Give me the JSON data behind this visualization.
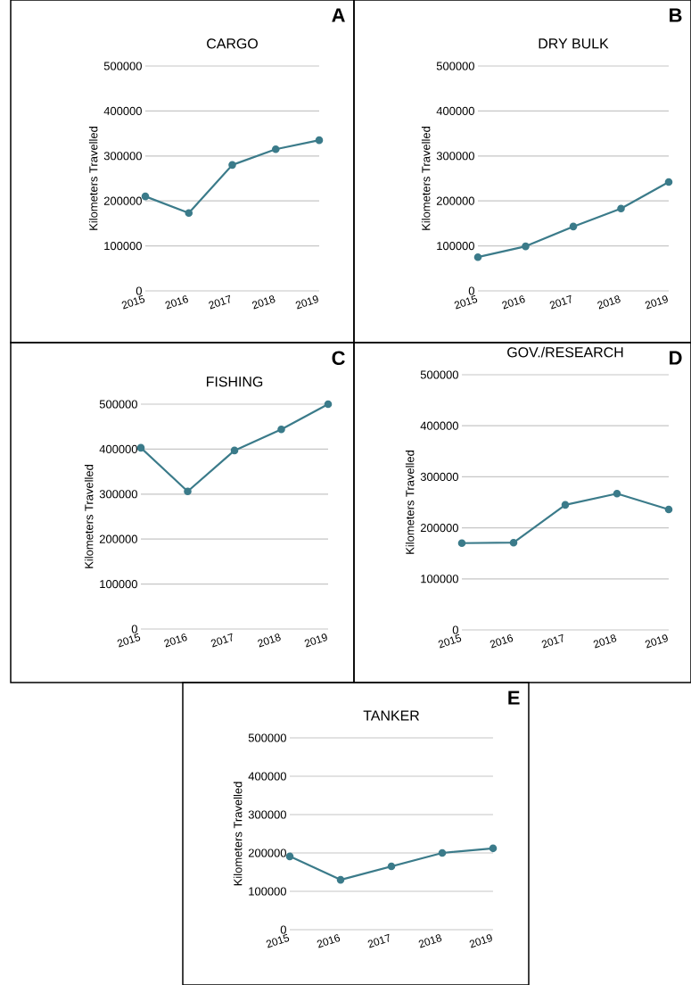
{
  "chart_data": [
    {
      "type": "line",
      "title": "CARGO",
      "ylabel": "Kilometers Travelled",
      "categories": [
        "2015",
        "2016",
        "2017",
        "2018",
        "2019"
      ],
      "series": [
        {
          "color": "#3b7b8a",
          "values": [
            210000,
            173000,
            280000,
            315000,
            335000
          ]
        }
      ],
      "ylim": [
        0,
        500000
      ],
      "yticks": [
        0,
        100000,
        200000,
        300000,
        400000,
        500000
      ],
      "grid": "y",
      "marker": "circle",
      "annotations": [
        "A"
      ]
    },
    {
      "type": "line",
      "title": "DRY BULK",
      "ylabel": "Kilometers Travelled",
      "categories": [
        "2015",
        "2016",
        "2017",
        "2018",
        "2019"
      ],
      "series": [
        {
          "color": "#3b7b8a",
          "values": [
            75000,
            99000,
            143000,
            183000,
            242000
          ]
        }
      ],
      "ylim": [
        0,
        500000
      ],
      "yticks": [
        0,
        100000,
        200000,
        300000,
        400000,
        500000
      ],
      "grid": "y",
      "marker": "circle",
      "annotations": [
        "B"
      ]
    },
    {
      "type": "line",
      "title": "FISHING",
      "ylabel": "Kilometers Travelled",
      "categories": [
        "2015",
        "2016",
        "2017",
        "2018",
        "2019"
      ],
      "series": [
        {
          "color": "#3b7b8a",
          "values": [
            403000,
            306000,
            397000,
            444000,
            500000
          ]
        }
      ],
      "ylim": [
        0,
        500000
      ],
      "yticks": [
        0,
        100000,
        200000,
        300000,
        400000,
        500000
      ],
      "grid": "y",
      "marker": "circle",
      "annotations": [
        "C"
      ]
    },
    {
      "type": "line",
      "title": "GOV./RESEARCH",
      "ylabel": "Kilometers Travelled",
      "categories": [
        "2015",
        "2016",
        "2017",
        "2018",
        "2019"
      ],
      "series": [
        {
          "color": "#3b7b8a",
          "values": [
            170000,
            171000,
            245000,
            267000,
            236000
          ]
        }
      ],
      "ylim": [
        0,
        500000
      ],
      "yticks": [
        0,
        100000,
        200000,
        300000,
        400000,
        500000
      ],
      "grid": "y",
      "marker": "circle",
      "annotations": [
        "D"
      ]
    },
    {
      "type": "line",
      "title": "TANKER",
      "ylabel": "Kilometers Travelled",
      "categories": [
        "2015",
        "2016",
        "2017",
        "2018",
        "2019"
      ],
      "series": [
        {
          "color": "#3b7b8a",
          "values": [
            191000,
            130000,
            165000,
            200000,
            212000
          ]
        }
      ],
      "ylim": [
        0,
        500000
      ],
      "yticks": [
        0,
        100000,
        200000,
        300000,
        400000,
        500000
      ],
      "grid": "y",
      "marker": "circle",
      "annotations": [
        "E"
      ]
    }
  ]
}
